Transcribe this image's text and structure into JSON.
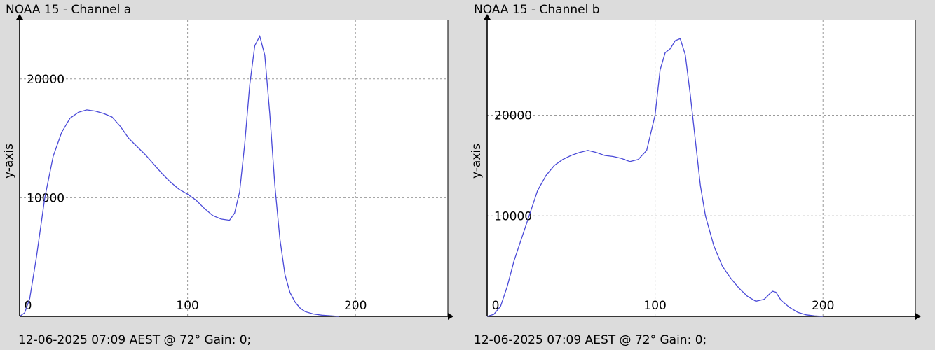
{
  "chart_data": [
    {
      "type": "line",
      "title": "NOAA 15 - Channel a",
      "footer": "12-06-2025 07:09 AEST @ 72° Gain: 0;",
      "xlabel": "",
      "ylabel": "y-axis",
      "xlim": [
        0,
        255
      ],
      "ylim": [
        0,
        25000
      ],
      "xticks": [
        0,
        100,
        200
      ],
      "yticks": [
        10000,
        20000
      ],
      "grid": true,
      "color": "#4a4ad8",
      "series": [
        {
          "x": [
            0,
            3,
            6,
            10,
            15,
            20,
            25,
            30,
            35,
            40,
            45,
            50,
            55,
            60,
            65,
            70,
            75,
            80,
            85,
            90,
            95,
            100,
            105,
            110,
            115,
            120,
            125,
            128,
            131,
            134,
            137,
            140,
            143,
            146,
            149,
            152,
            155,
            158,
            161,
            164,
            167,
            170,
            175,
            180,
            185,
            190
          ],
          "y": [
            0,
            300,
            1500,
            5000,
            10000,
            13500,
            15500,
            16700,
            17200,
            17400,
            17300,
            17100,
            16800,
            16000,
            15000,
            14300,
            13600,
            12800,
            12000,
            11300,
            10700,
            10300,
            9800,
            9100,
            8500,
            8200,
            8100,
            8700,
            10500,
            14500,
            19500,
            22800,
            23600,
            22000,
            17000,
            11000,
            6500,
            3500,
            2000,
            1200,
            700,
            400,
            200,
            100,
            50,
            0
          ]
        }
      ]
    },
    {
      "type": "line",
      "title": "NOAA 15 - Channel b",
      "footer": "12-06-2025 07:09 AEST @ 72° Gain: 0;",
      "xlabel": "",
      "ylabel": "y-axis",
      "xlim": [
        0,
        255
      ],
      "ylim": [
        0,
        29500
      ],
      "xticks": [
        0,
        100,
        200
      ],
      "yticks": [
        10000,
        20000
      ],
      "grid": true,
      "color": "#4a4ad8",
      "series": [
        {
          "x": [
            0,
            4,
            8,
            12,
            16,
            20,
            25,
            30,
            35,
            40,
            45,
            50,
            55,
            60,
            65,
            70,
            75,
            80,
            85,
            90,
            95,
            100,
            103,
            106,
            109,
            112,
            115,
            118,
            121,
            124,
            127,
            130,
            135,
            140,
            145,
            150,
            155,
            160,
            165,
            168,
            170,
            172,
            175,
            180,
            185,
            190,
            195,
            200
          ],
          "y": [
            0,
            200,
            1000,
            3000,
            5500,
            7500,
            10000,
            12500,
            14000,
            15000,
            15600,
            16000,
            16300,
            16500,
            16300,
            16000,
            15900,
            15700,
            15400,
            15600,
            16500,
            20000,
            24500,
            26200,
            26600,
            27400,
            27600,
            26000,
            22000,
            17500,
            13000,
            10000,
            7000,
            5000,
            3800,
            2800,
            2000,
            1500,
            1700,
            2200,
            2500,
            2400,
            1600,
            900,
            400,
            150,
            50,
            0
          ]
        }
      ]
    }
  ]
}
